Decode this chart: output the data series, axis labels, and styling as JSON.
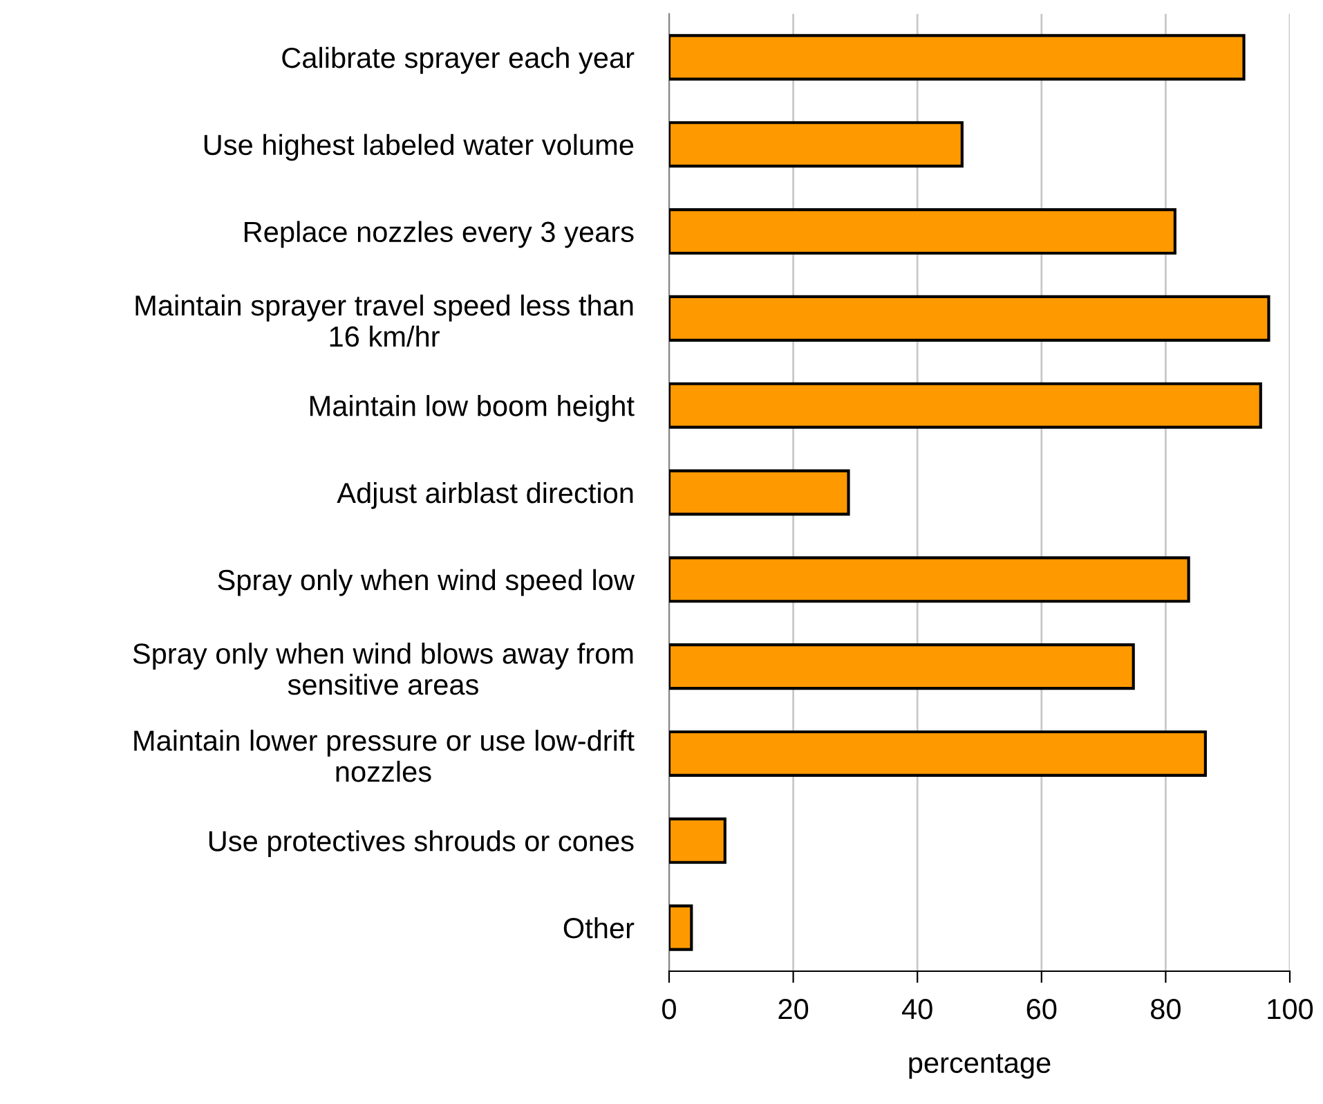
{
  "chart_data": {
    "type": "bar",
    "orientation": "horizontal",
    "xlabel": "percentage",
    "categories": [
      "Calibrate sprayer each year",
      "Use highest labeled water volume",
      "Replace nozzles every 3 years",
      "Maintain sprayer travel speed less than\n16 km/hr",
      "Maintain low boom height",
      "Adjust airblast direction",
      "Spray only when wind speed low",
      "Spray only when wind blows away from\nsensitive areas",
      "Maintain lower pressure or use low-drift\nnozzles",
      "Use protectives shrouds or cones",
      "Other"
    ],
    "values": [
      92.6,
      47.2,
      81.5,
      96.6,
      95.3,
      28.9,
      83.7,
      74.8,
      86.4,
      9.0,
      3.6
    ],
    "color": "#ff9900",
    "xlim": [
      0,
      100
    ],
    "xticks": [
      0,
      20,
      40,
      60,
      80,
      100
    ],
    "grid": "x",
    "legend": false
  }
}
